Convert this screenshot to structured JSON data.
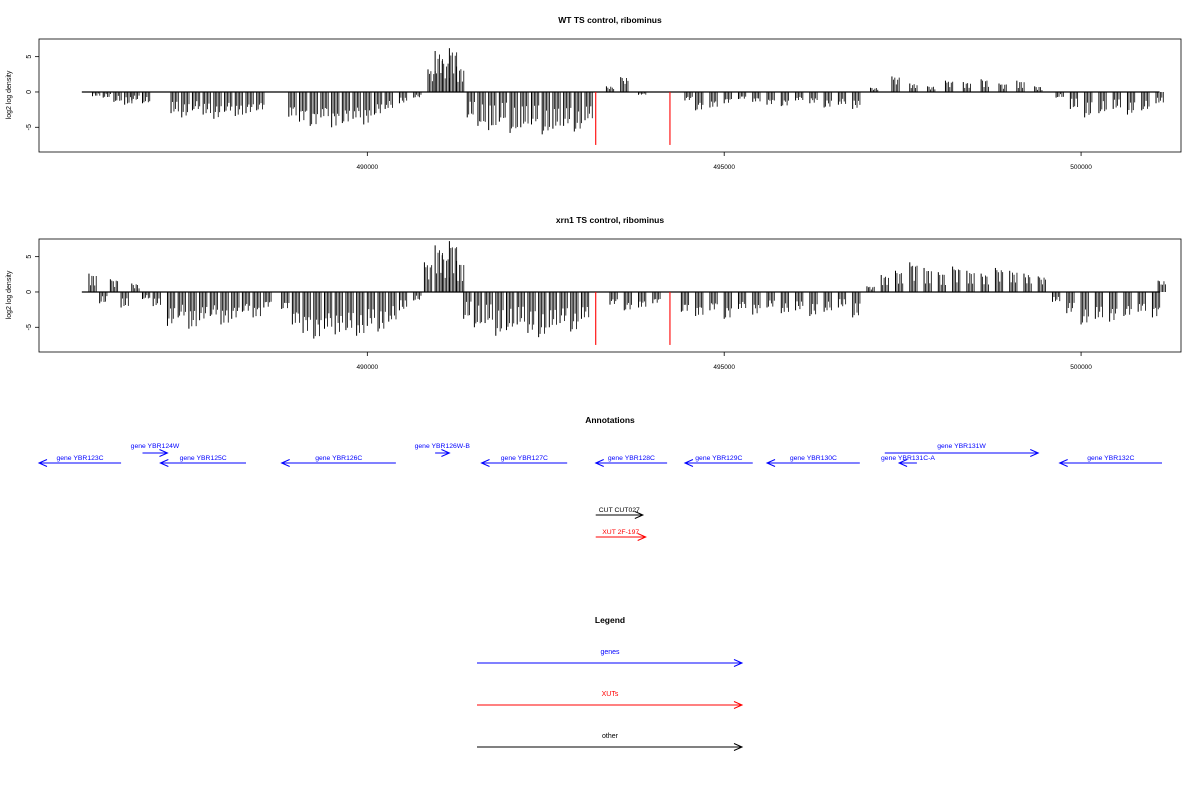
{
  "chart_data": [
    {
      "type": "bar",
      "title": "WT TS control, ribominus",
      "ylabel": "log2 log density",
      "xlabel": "",
      "xlim": [
        485400,
        501400
      ],
      "ylim": [
        -8.5,
        7.5
      ],
      "yticks": [
        -5,
        0,
        5
      ],
      "xticks": [
        490000,
        495000,
        500000
      ],
      "baseline": {
        "from": 486000,
        "to": 501100
      },
      "highlight_lines": [
        {
          "x": 493200,
          "y0": 0,
          "y1": -7.5,
          "color": "#ff0000"
        },
        {
          "x": 494240,
          "y0": 0,
          "y1": -7.5,
          "color": "#ff0000"
        }
      ],
      "series": [
        {
          "values": [
            [
              486150,
              -0.6
            ],
            [
              486300,
              -0.8
            ],
            [
              486450,
              -1.4
            ],
            [
              486600,
              -1.8
            ],
            [
              486700,
              -1.2
            ],
            [
              486850,
              -1.6
            ],
            [
              487250,
              -3.0
            ],
            [
              487400,
              -3.6
            ],
            [
              487550,
              -2.6
            ],
            [
              487700,
              -3.2
            ],
            [
              487850,
              -3.8
            ],
            [
              488000,
              -2.8
            ],
            [
              488150,
              -3.4
            ],
            [
              488300,
              -3.0
            ],
            [
              488450,
              -2.6
            ],
            [
              488900,
              -3.5
            ],
            [
              489050,
              -4.2
            ],
            [
              489200,
              -4.8
            ],
            [
              489350,
              -3.6
            ],
            [
              489500,
              -5.0
            ],
            [
              489650,
              -4.4
            ],
            [
              489800,
              -3.8
            ],
            [
              489950,
              -4.6
            ],
            [
              490100,
              -3.2
            ],
            [
              490250,
              -2.4
            ],
            [
              490450,
              -1.6
            ],
            [
              490650,
              -0.8
            ],
            [
              490850,
              3.2
            ],
            [
              490950,
              5.8
            ],
            [
              491050,
              4.4
            ],
            [
              491150,
              6.2
            ],
            [
              491250,
              3.6
            ],
            [
              491400,
              -3.6
            ],
            [
              491550,
              -4.8
            ],
            [
              491700,
              -5.4
            ],
            [
              491850,
              -4.2
            ],
            [
              492000,
              -5.8
            ],
            [
              492150,
              -5.0
            ],
            [
              492300,
              -4.6
            ],
            [
              492450,
              -6.0
            ],
            [
              492600,
              -5.2
            ],
            [
              492750,
              -4.8
            ],
            [
              492900,
              -5.6
            ],
            [
              493050,
              -4.0
            ],
            [
              493350,
              0.8
            ],
            [
              493550,
              2.1
            ],
            [
              493800,
              -0.4
            ],
            [
              494450,
              -1.2
            ],
            [
              494600,
              -2.6
            ],
            [
              494800,
              -2.2
            ],
            [
              495000,
              -1.6
            ],
            [
              495200,
              -1.0
            ],
            [
              495400,
              -1.4
            ],
            [
              495600,
              -1.8
            ],
            [
              495800,
              -2.0
            ],
            [
              496000,
              -1.2
            ],
            [
              496200,
              -1.6
            ],
            [
              496400,
              -2.2
            ],
            [
              496600,
              -1.8
            ],
            [
              496800,
              -2.4
            ],
            [
              497050,
              0.6
            ],
            [
              497350,
              2.2
            ],
            [
              497600,
              1.2
            ],
            [
              497850,
              0.8
            ],
            [
              498100,
              1.6
            ],
            [
              498350,
              1.4
            ],
            [
              498600,
              1.8
            ],
            [
              498850,
              1.2
            ],
            [
              499100,
              1.6
            ],
            [
              499350,
              0.8
            ],
            [
              499650,
              -0.8
            ],
            [
              499850,
              -2.4
            ],
            [
              500050,
              -3.6
            ],
            [
              500250,
              -3.0
            ],
            [
              500450,
              -2.4
            ],
            [
              500650,
              -3.2
            ],
            [
              500850,
              -2.6
            ],
            [
              501050,
              -1.6
            ]
          ]
        }
      ]
    },
    {
      "type": "bar",
      "title": "xrn1 TS control, ribominus",
      "ylabel": "log2 log density",
      "xlabel": "",
      "xlim": [
        485400,
        501400
      ],
      "ylim": [
        -8.5,
        7.5
      ],
      "yticks": [
        -5,
        0,
        5
      ],
      "xticks": [
        490000,
        495000,
        500000
      ],
      "baseline": {
        "from": 486000,
        "to": 501100
      },
      "highlight_lines": [
        {
          "x": 493200,
          "y0": 0,
          "y1": -7.5,
          "color": "#ff0000"
        },
        {
          "x": 494240,
          "y0": 0,
          "y1": -7.5,
          "color": "#ff0000"
        }
      ],
      "series": [
        {
          "values": [
            [
              486100,
              2.6
            ],
            [
              486250,
              -1.6
            ],
            [
              486400,
              1.8
            ],
            [
              486550,
              -2.2
            ],
            [
              486700,
              1.2
            ],
            [
              486850,
              -1.0
            ],
            [
              487000,
              -2.0
            ],
            [
              487200,
              -4.8
            ],
            [
              487350,
              -3.6
            ],
            [
              487500,
              -5.2
            ],
            [
              487650,
              -4.0
            ],
            [
              487800,
              -3.4
            ],
            [
              487950,
              -4.6
            ],
            [
              488100,
              -3.8
            ],
            [
              488250,
              -2.8
            ],
            [
              488400,
              -3.6
            ],
            [
              488550,
              -2.2
            ],
            [
              488800,
              -2.4
            ],
            [
              488950,
              -4.6
            ],
            [
              489100,
              -5.8
            ],
            [
              489250,
              -6.6
            ],
            [
              489400,
              -5.2
            ],
            [
              489550,
              -6.0
            ],
            [
              489700,
              -5.4
            ],
            [
              489850,
              -6.2
            ],
            [
              490000,
              -4.8
            ],
            [
              490150,
              -5.6
            ],
            [
              490300,
              -4.2
            ],
            [
              490450,
              -2.6
            ],
            [
              490650,
              -1.2
            ],
            [
              490800,
              4.2
            ],
            [
              490950,
              6.6
            ],
            [
              491050,
              5.2
            ],
            [
              491150,
              7.2
            ],
            [
              491250,
              4.4
            ],
            [
              491350,
              -3.8
            ],
            [
              491500,
              -5.0
            ],
            [
              491650,
              -4.4
            ],
            [
              491800,
              -6.2
            ],
            [
              491950,
              -5.4
            ],
            [
              492100,
              -4.6
            ],
            [
              492250,
              -5.8
            ],
            [
              492400,
              -6.4
            ],
            [
              492550,
              -5.0
            ],
            [
              492700,
              -4.4
            ],
            [
              492850,
              -5.6
            ],
            [
              493000,
              -3.8
            ],
            [
              493400,
              -1.8
            ],
            [
              493600,
              -2.6
            ],
            [
              493800,
              -2.2
            ],
            [
              494000,
              -1.6
            ],
            [
              494400,
              -2.8
            ],
            [
              494600,
              -3.4
            ],
            [
              494800,
              -2.6
            ],
            [
              495000,
              -3.8
            ],
            [
              495200,
              -2.4
            ],
            [
              495400,
              -3.2
            ],
            [
              495600,
              -2.2
            ],
            [
              495800,
              -3.0
            ],
            [
              496000,
              -2.6
            ],
            [
              496200,
              -3.4
            ],
            [
              496400,
              -2.8
            ],
            [
              496600,
              -2.2
            ],
            [
              496800,
              -3.6
            ],
            [
              497000,
              0.8
            ],
            [
              497200,
              2.4
            ],
            [
              497400,
              3.0
            ],
            [
              497600,
              4.2
            ],
            [
              497800,
              3.4
            ],
            [
              498000,
              2.8
            ],
            [
              498200,
              3.6
            ],
            [
              498400,
              3.0
            ],
            [
              498600,
              2.6
            ],
            [
              498800,
              3.4
            ],
            [
              499000,
              3.0
            ],
            [
              499200,
              2.6
            ],
            [
              499400,
              2.2
            ],
            [
              499600,
              -1.4
            ],
            [
              499800,
              -3.0
            ],
            [
              500000,
              -4.6
            ],
            [
              500200,
              -3.8
            ],
            [
              500400,
              -4.2
            ],
            [
              500600,
              -3.4
            ],
            [
              500800,
              -2.8
            ],
            [
              501000,
              -3.6
            ],
            [
              501080,
              1.6
            ]
          ]
        }
      ]
    }
  ],
  "annotations": {
    "title": "Annotations",
    "features": [
      {
        "label": "gene YBR123C",
        "start": 485400,
        "end": 486550,
        "dir": "left",
        "color": "#0000ff",
        "row": 1
      },
      {
        "label": "gene YBR124W",
        "start": 486850,
        "end": 487200,
        "dir": "right",
        "color": "#0000ff",
        "row": 0
      },
      {
        "label": "gene YBR125C",
        "start": 487100,
        "end": 488300,
        "dir": "left",
        "color": "#0000ff",
        "row": 1
      },
      {
        "label": "gene YBR126C",
        "start": 488800,
        "end": 490400,
        "dir": "left",
        "color": "#0000ff",
        "row": 1
      },
      {
        "label": "gene YBR126W-B",
        "start": 490950,
        "end": 491150,
        "dir": "right",
        "color": "#0000ff",
        "row": 0
      },
      {
        "label": "gene YBR127C",
        "start": 491600,
        "end": 492800,
        "dir": "left",
        "color": "#0000ff",
        "row": 1
      },
      {
        "label": "gene YBR128C",
        "start": 493200,
        "end": 494200,
        "dir": "left",
        "color": "#0000ff",
        "row": 1
      },
      {
        "label": "gene YBR129C",
        "start": 494450,
        "end": 495400,
        "dir": "left",
        "color": "#0000ff",
        "row": 1
      },
      {
        "label": "gene YBR130C",
        "start": 495600,
        "end": 496900,
        "dir": "left",
        "color": "#0000ff",
        "row": 1
      },
      {
        "label": "gene YBR131W",
        "start": 497250,
        "end": 499400,
        "dir": "right",
        "color": "#0000ff",
        "row": 0
      },
      {
        "label": "gene YBR131C-A",
        "start": 497450,
        "end": 497700,
        "dir": "left",
        "color": "#0000ff",
        "row": 1
      },
      {
        "label": "gene YBR132C",
        "start": 499700,
        "end": 501400,
        "dir": "left",
        "color": "#0000ff",
        "row": 1
      },
      {
        "label": "CUT CUT027",
        "start": 493200,
        "end": 493860,
        "dir": "right",
        "color": "#000000",
        "row": 2
      },
      {
        "label": "XUT 2F-197",
        "start": 493200,
        "end": 493900,
        "dir": "right",
        "color": "#ff0000",
        "row": 3
      }
    ]
  },
  "legend": {
    "title": "Legend",
    "items": [
      {
        "label": "genes",
        "color": "#0000ff"
      },
      {
        "label": "XUTs",
        "color": "#ff0000"
      },
      {
        "label": "other",
        "color": "#000000"
      }
    ]
  }
}
